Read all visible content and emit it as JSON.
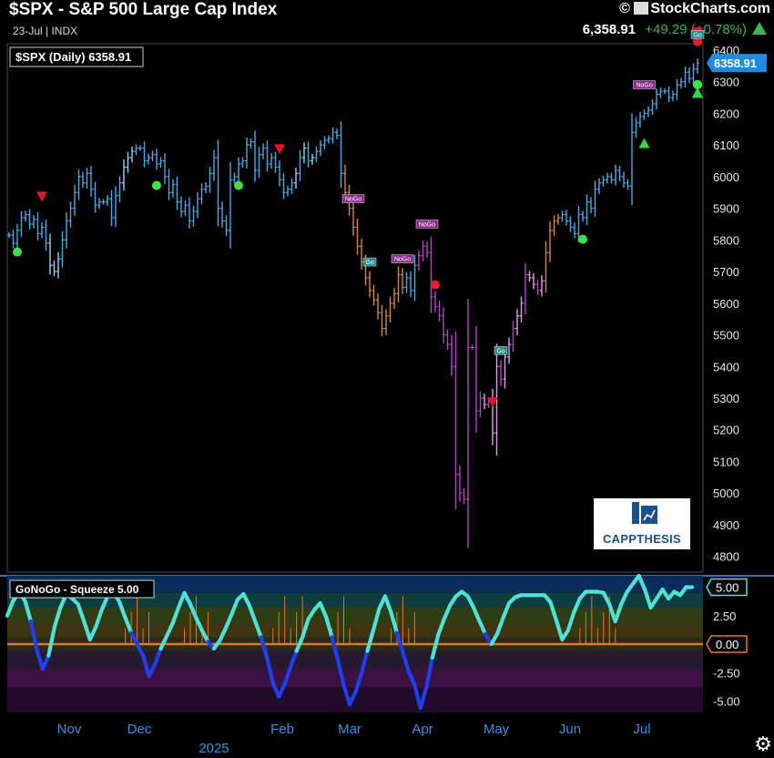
{
  "header": {
    "title": "$SPX - S&P 500 Large Cap Index",
    "subtitle": "23-Jul | INDX",
    "brand": "StockCharts.com",
    "copyright_symbol": "©",
    "last": "6,358.91",
    "change": "+49.29 (+0.78%)",
    "change_color": "#3fb54d"
  },
  "main_legend": "$SPX (Daily) 6358.91",
  "current_price_label": "6358.91",
  "logo_text": "CAPPTHESIS",
  "settings_icon": "gear-icon",
  "chart_data": [
    {
      "type": "bar",
      "title": "$SPX (Daily) 6358.91",
      "style": "ohlc-bars",
      "ylim": [
        4750,
        6420
      ],
      "yticks": [
        4800,
        4900,
        5000,
        5100,
        5200,
        5300,
        5400,
        5500,
        5600,
        5700,
        5800,
        5900,
        6000,
        6100,
        6200,
        6300,
        6400
      ],
      "x_tick_labels": [
        "Nov",
        "Dec",
        "2025",
        "Feb",
        "Mar",
        "Apr",
        "May",
        "Jun",
        "Jul"
      ],
      "colors": {
        "go_strong": "#4fa8e0",
        "go_weak": "#9ad0f5",
        "nogo_strong": "#b048c0",
        "nogo_weak": "#e0a0e8",
        "neutral": "#d2874a"
      },
      "closes": [
        5815,
        5790,
        5830,
        5870,
        5880,
        5850,
        5865,
        5820,
        5840,
        5790,
        5720,
        5700,
        5740,
        5800,
        5860,
        5900,
        5950,
        6000,
        5980,
        6010,
        5960,
        5910,
        5920,
        5920,
        5930,
        5870,
        5940,
        5980,
        6030,
        6060,
        6080,
        6090,
        6090,
        6050,
        6060,
        6070,
        6040,
        6050,
        6000,
        5950,
        5975,
        5920,
        5890,
        5910,
        5860,
        5890,
        5930,
        5960,
        5970,
        6010,
        6060,
        5900,
        5860,
        5830,
        5990,
        6000,
        6040,
        6050,
        6100,
        6110,
        6020,
        6070,
        6090,
        6040,
        6060,
        6030,
        5990,
        5950,
        5960,
        5980,
        6010,
        6060,
        6090,
        6050,
        6060,
        6080,
        6100,
        6115,
        6120,
        6140,
        6130,
        6010,
        5950,
        5900,
        5840,
        5780,
        5730,
        5680,
        5640,
        5610,
        5570,
        5520,
        5560,
        5600,
        5630,
        5690,
        5650,
        5680,
        5640,
        5720,
        5750,
        5780,
        5760,
        5620,
        5590,
        5560,
        5500,
        5470,
        5400,
        5060,
        5000,
        4980,
        5460,
        5460,
        5260,
        5300,
        5280,
        5290,
        5190,
        5400,
        5360,
        5430,
        5470,
        5520,
        5560,
        5600,
        5690,
        5680,
        5660,
        5640,
        5670,
        5760,
        5830,
        5860,
        5870,
        5880,
        5860,
        5840,
        5820,
        5880,
        5870,
        5920,
        5900,
        5960,
        5980,
        5990,
        6000,
        5990,
        6020,
        6000,
        5980,
        5970,
        6140,
        6170,
        6190,
        6200,
        6210,
        6230,
        6260,
        6270,
        6270,
        6250,
        6260,
        6290,
        6300,
        6330,
        6310,
        6340,
        6359
      ],
      "signals": [
        {
          "kind": "sell",
          "day": 8
        },
        {
          "kind": "sell",
          "day": 66
        },
        {
          "kind": "sell",
          "day": 118
        },
        {
          "kind": "sell",
          "day": 296
        },
        {
          "kind": "sell",
          "day": 300
        },
        {
          "kind": "buy",
          "day": 155
        },
        {
          "kind": "buy",
          "day": 168
        },
        {
          "kind": "buy",
          "day": 172
        },
        {
          "kind": "buy",
          "day": 200
        },
        {
          "kind": "go",
          "day": 2
        },
        {
          "kind": "go",
          "day": 36
        },
        {
          "kind": "go",
          "day": 56
        },
        {
          "kind": "go",
          "day": 140
        },
        {
          "kind": "go",
          "day": 253
        },
        {
          "kind": "go",
          "day": 256
        },
        {
          "kind": "go",
          "day": 262
        },
        {
          "kind": "go",
          "day": 281
        },
        {
          "kind": "nogo",
          "day": 104
        },
        {
          "kind": "nogo",
          "day": 188
        },
        {
          "kind": "nogo",
          "day": 195
        },
        {
          "kind": "nogo",
          "day": 213
        }
      ],
      "labels": [
        {
          "text": "NoGo",
          "day": 84
        },
        {
          "text": "Go",
          "day": 88
        },
        {
          "text": "NoGo",
          "day": 96
        },
        {
          "text": "NoGo",
          "day": 102
        },
        {
          "text": "Go",
          "day": 120
        },
        {
          "text": "NoGo",
          "day": 155
        },
        {
          "text": "Go",
          "day": 235
        }
      ]
    },
    {
      "type": "area",
      "title": "GoNoGo - Squeeze 5.00",
      "series_name": "GoNoGo Oscillator",
      "ylim": [
        -6,
        6
      ],
      "yticks": [
        5,
        2.5,
        0,
        -2.5,
        -5
      ],
      "ytick_labels": [
        "5.00",
        "2.50",
        "0.00",
        "-2.50",
        "-5.00"
      ],
      "last_value_label": "5.00",
      "zero_label": "0.00",
      "values": [
        2.5,
        3.8,
        4.6,
        3.8,
        2.0,
        -0.5,
        -2.2,
        -1.0,
        1.5,
        3.2,
        4.4,
        4.0,
        3.5,
        2.0,
        0.4,
        1.5,
        3.0,
        4.2,
        4.6,
        3.7,
        2.3,
        1.0,
        0.0,
        -1.0,
        -2.8,
        -1.8,
        -0.4,
        0.7,
        1.8,
        3.2,
        4.5,
        3.5,
        2.3,
        1.2,
        0.2,
        -0.4,
        0.3,
        1.4,
        2.6,
        3.9,
        4.4,
        3.4,
        2.0,
        0.6,
        -1.2,
        -3.4,
        -4.6,
        -3.5,
        -2.0,
        -0.6,
        0.6,
        2.2,
        3.0,
        3.6,
        2.4,
        0.6,
        -1.4,
        -3.6,
        -5.3,
        -4.2,
        -2.6,
        -0.6,
        1.2,
        3.1,
        4.2,
        2.8,
        1.0,
        -0.7,
        -2.4,
        -3.6,
        -5.6,
        -3.8,
        -1.2,
        0.8,
        2.2,
        3.4,
        4.2,
        4.6,
        4.2,
        3.2,
        2.0,
        0.9,
        0.0,
        0.9,
        2.3,
        3.6,
        4.1,
        4.3,
        4.3,
        4.3,
        4.3,
        4.3,
        3.7,
        2.1,
        0.4,
        1.2,
        2.8,
        4.0,
        4.6,
        4.6,
        4.6,
        4.5,
        3.5,
        2.0,
        3.5,
        4.6,
        5.3,
        6.0,
        4.8,
        3.2,
        4.0,
        4.8,
        4.0,
        4.6,
        4.3,
        5.0,
        5.0
      ]
    }
  ]
}
